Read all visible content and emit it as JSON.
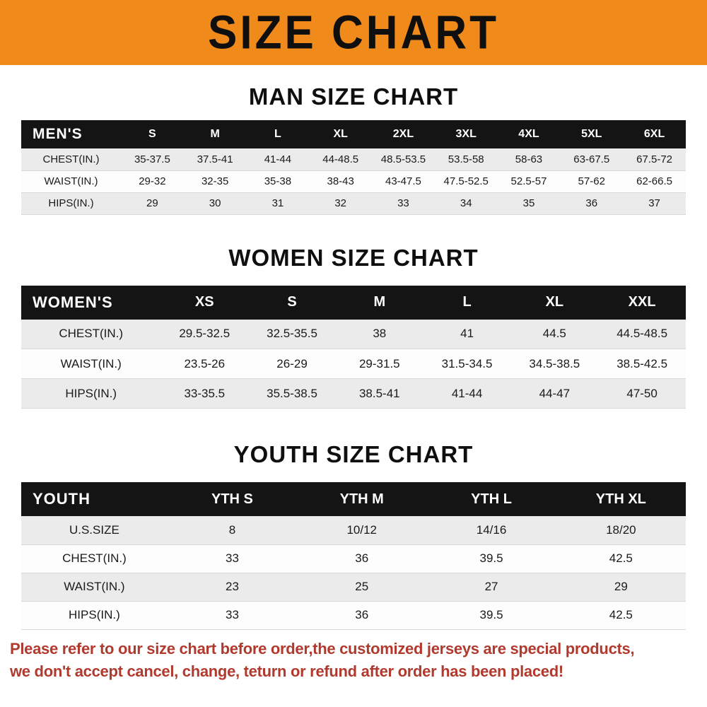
{
  "banner": {
    "title": "SIZE CHART",
    "bg_color": "#ef8a1b",
    "text_color": "#0f0f0f"
  },
  "sections": [
    {
      "title": "MAN SIZE CHART",
      "table": {
        "header": [
          "MEN'S",
          "S",
          "M",
          "L",
          "XL",
          "2XL",
          "3XL",
          "4XL",
          "5XL",
          "6XL"
        ],
        "rows": [
          [
            "CHEST(IN.)",
            "35-37.5",
            "37.5-41",
            "41-44",
            "44-48.5",
            "48.5-53.5",
            "53.5-58",
            "58-63",
            "63-67.5",
            "67.5-72"
          ],
          [
            "WAIST(IN.)",
            "29-32",
            "32-35",
            "35-38",
            "38-43",
            "43-47.5",
            "47.5-52.5",
            "52.5-57",
            "57-62",
            "62-66.5"
          ],
          [
            "HIPS(IN.)",
            "29",
            "30",
            "31",
            "32",
            "33",
            "34",
            "35",
            "36",
            "37"
          ]
        ]
      }
    },
    {
      "title": "WOMEN SIZE CHART",
      "table": {
        "header": [
          "WOMEN'S",
          "XS",
          "S",
          "M",
          "L",
          "XL",
          "XXL"
        ],
        "rows": [
          [
            "CHEST(IN.)",
            "29.5-32.5",
            "32.5-35.5",
            "38",
            "41",
            "44.5",
            "44.5-48.5"
          ],
          [
            "WAIST(IN.)",
            "23.5-26",
            "26-29",
            "29-31.5",
            "31.5-34.5",
            "34.5-38.5",
            "38.5-42.5"
          ],
          [
            "HIPS(IN.)",
            "33-35.5",
            "35.5-38.5",
            "38.5-41",
            "41-44",
            "44-47",
            "47-50"
          ]
        ]
      }
    },
    {
      "title": "YOUTH SIZE CHART",
      "table": {
        "header": [
          "YOUTH",
          "YTH S",
          "YTH M",
          "YTH L",
          "YTH XL"
        ],
        "rows": [
          [
            "U.S.SIZE",
            "8",
            "10/12",
            "14/16",
            "18/20"
          ],
          [
            "CHEST(IN.)",
            "33",
            "36",
            "39.5",
            "42.5"
          ],
          [
            "WAIST(IN.)",
            "23",
            "25",
            "27",
            "29"
          ],
          [
            "HIPS(IN.)",
            "33",
            "36",
            "39.5",
            "42.5"
          ]
        ]
      }
    }
  ],
  "footer": {
    "lines": [
      "Please refer to our size chart before order,the customized jerseys are special products,",
      "we don't accept cancel, change, teturn or refund after order has been placed!"
    ],
    "text_color": "#b03a2e"
  }
}
